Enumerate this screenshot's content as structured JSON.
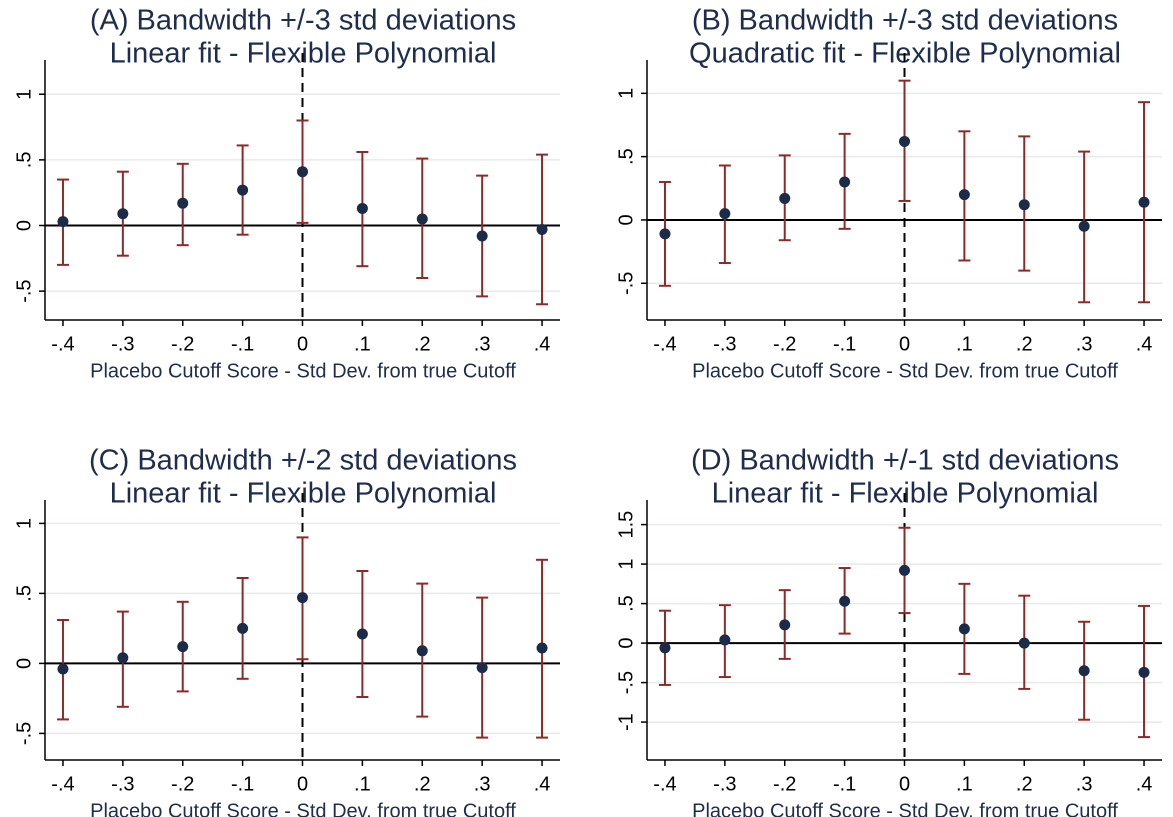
{
  "chart_data": [
    {
      "type": "errorbar",
      "title": "(A) Bandwidth +/-3 std deviations",
      "subtitle": "Linear fit - Flexible Polynomial",
      "xlabel": "Placebo Cutoff Score - Std Dev. from true Cutoff",
      "x": [
        -0.4,
        -0.3,
        -0.2,
        -0.1,
        0,
        0.1,
        0.2,
        0.3,
        0.4
      ],
      "values": [
        0.03,
        0.09,
        0.17,
        0.27,
        0.41,
        0.13,
        0.05,
        -0.08,
        -0.03
      ],
      "lower": [
        -0.3,
        -0.23,
        -0.15,
        -0.07,
        0.02,
        -0.31,
        -0.4,
        -0.54,
        -0.6
      ],
      "upper": [
        0.35,
        0.41,
        0.47,
        0.61,
        0.8,
        0.56,
        0.51,
        0.38,
        0.54
      ],
      "xlim": [
        -0.43,
        0.43
      ],
      "ylim": [
        -0.72,
        1.2
      ],
      "xticks": [
        {
          "value": -0.4,
          "label": "-.4"
        },
        {
          "value": -0.3,
          "label": "-.3"
        },
        {
          "value": -0.2,
          "label": "-.2"
        },
        {
          "value": -0.1,
          "label": "-.1"
        },
        0,
        {
          "value": 0.1,
          "label": ".1"
        },
        {
          "value": 0.2,
          "label": ".2"
        },
        {
          "value": 0.3,
          "label": ".3"
        },
        {
          "value": 0.4,
          "label": ".4"
        }
      ],
      "yticks": [
        {
          "value": -0.5,
          "label": "-.5"
        },
        0,
        {
          "value": 0.5,
          "label": ".5"
        },
        1
      ],
      "hline": 0,
      "vline": 0,
      "grid": true,
      "color": "#1b2b48",
      "ci_color": "#8c2a2a"
    },
    {
      "type": "errorbar",
      "title": "(B) Bandwidth +/-3 std deviations",
      "subtitle": "Quadratic fit - Flexible Polynomial",
      "xlabel": "Placebo Cutoff Score - Std Dev. from true Cutoff",
      "x": [
        -0.4,
        -0.3,
        -0.2,
        -0.1,
        0,
        0.1,
        0.2,
        0.3,
        0.4
      ],
      "values": [
        -0.11,
        0.05,
        0.17,
        0.3,
        0.62,
        0.2,
        0.12,
        -0.05,
        0.14
      ],
      "lower": [
        -0.52,
        -0.34,
        -0.16,
        -0.07,
        0.15,
        -0.32,
        -0.4,
        -0.65,
        -0.65
      ],
      "upper": [
        0.3,
        0.43,
        0.51,
        0.68,
        1.1,
        0.7,
        0.66,
        0.54,
        0.93
      ],
      "xlim": [
        -0.43,
        0.43
      ],
      "ylim": [
        -0.79,
        1.2
      ],
      "xticks": [
        {
          "value": -0.4,
          "label": "-.4"
        },
        {
          "value": -0.3,
          "label": "-.3"
        },
        {
          "value": -0.2,
          "label": "-.2"
        },
        {
          "value": -0.1,
          "label": "-.1"
        },
        0,
        {
          "value": 0.1,
          "label": ".1"
        },
        {
          "value": 0.2,
          "label": ".2"
        },
        {
          "value": 0.3,
          "label": ".3"
        },
        {
          "value": 0.4,
          "label": ".4"
        }
      ],
      "yticks": [
        {
          "value": -0.5,
          "label": "-.5"
        },
        0,
        {
          "value": 0.5,
          "label": ".5"
        },
        1
      ],
      "hline": 0,
      "vline": 0,
      "grid": true,
      "color": "#1b2b48",
      "ci_color": "#8c2a2a"
    },
    {
      "type": "errorbar",
      "title": "(C) Bandwidth +/-2 std deviations",
      "subtitle": "Linear fit - Flexible Polynomial",
      "xlabel": "Placebo Cutoff Score - Std Dev. from true Cutoff",
      "x": [
        -0.4,
        -0.3,
        -0.2,
        -0.1,
        0,
        0.1,
        0.2,
        0.3,
        0.4
      ],
      "values": [
        -0.04,
        0.04,
        0.12,
        0.25,
        0.47,
        0.21,
        0.09,
        -0.03,
        0.11
      ],
      "lower": [
        -0.4,
        -0.31,
        -0.2,
        -0.11,
        0.03,
        -0.24,
        -0.38,
        -0.53,
        -0.53
      ],
      "upper": [
        0.31,
        0.37,
        0.44,
        0.61,
        0.9,
        0.66,
        0.57,
        0.47,
        0.74
      ],
      "xlim": [
        -0.43,
        0.43
      ],
      "ylim": [
        -0.69,
        1.11
      ],
      "xticks": [
        {
          "value": -0.4,
          "label": "-.4"
        },
        {
          "value": -0.3,
          "label": "-.3"
        },
        {
          "value": -0.2,
          "label": "-.2"
        },
        {
          "value": -0.1,
          "label": "-.1"
        },
        0,
        {
          "value": 0.1,
          "label": ".1"
        },
        {
          "value": 0.2,
          "label": ".2"
        },
        {
          "value": 0.3,
          "label": ".3"
        },
        {
          "value": 0.4,
          "label": ".4"
        }
      ],
      "yticks": [
        {
          "value": -0.5,
          "label": "-.5"
        },
        0,
        {
          "value": 0.5,
          "label": ".5"
        },
        1
      ],
      "hline": 0,
      "vline": 0,
      "grid": true,
      "color": "#1b2b48",
      "ci_color": "#8c2a2a"
    },
    {
      "type": "errorbar",
      "title": "(D) Bandwidth +/-1 std deviations",
      "subtitle": "Linear fit - Flexible Polynomial",
      "xlabel": "Placebo Cutoff Score - Std Dev. from true Cutoff",
      "x": [
        -0.4,
        -0.3,
        -0.2,
        -0.1,
        0,
        0.1,
        0.2,
        0.3,
        0.4
      ],
      "values": [
        -0.06,
        0.04,
        0.23,
        0.53,
        0.92,
        0.18,
        0,
        -0.35,
        -0.37
      ],
      "lower": [
        -0.53,
        -0.43,
        -0.2,
        0.12,
        0.38,
        -0.39,
        -0.58,
        -0.97,
        -1.19
      ],
      "upper": [
        0.41,
        0.48,
        0.67,
        0.95,
        1.46,
        0.75,
        0.6,
        0.27,
        0.47
      ],
      "xlim": [
        -0.43,
        0.43
      ],
      "ylim": [
        -1.48,
        1.71
      ],
      "xticks": [
        {
          "value": -0.4,
          "label": "-.4"
        },
        {
          "value": -0.3,
          "label": "-.3"
        },
        {
          "value": -0.2,
          "label": "-.2"
        },
        {
          "value": -0.1,
          "label": "-.1"
        },
        0,
        {
          "value": 0.1,
          "label": ".1"
        },
        {
          "value": 0.2,
          "label": ".2"
        },
        {
          "value": 0.3,
          "label": ".3"
        },
        {
          "value": 0.4,
          "label": ".4"
        }
      ],
      "yticks": [
        {
          "value": -1,
          "label": "-1"
        },
        {
          "value": -0.5,
          "label": "-.5"
        },
        0,
        {
          "value": 0.5,
          "label": ".5"
        },
        1,
        {
          "value": 1.5,
          "label": "1.5"
        }
      ],
      "hline": 0,
      "vline": 0,
      "grid": true,
      "color": "#1b2b48",
      "ci_color": "#8c2a2a"
    }
  ]
}
